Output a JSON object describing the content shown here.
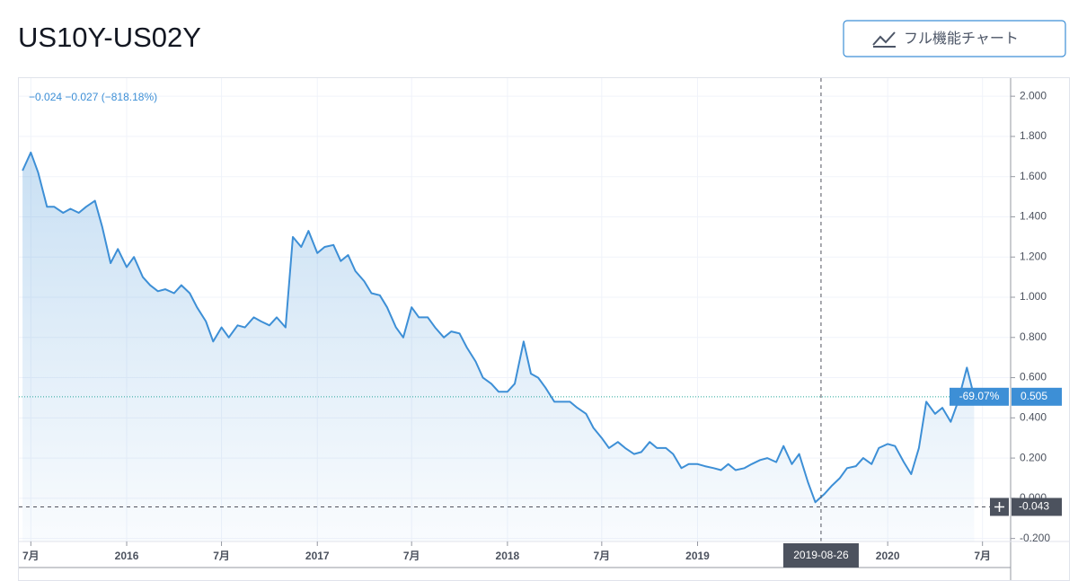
{
  "ui": {
    "button": "フル機能チャート"
  },
  "chart_data": {
    "type": "area",
    "title": "US10Y-US02Y",
    "legend_text": "−0.024  −0.027  (−818.18%)",
    "color": "#3d8fd6",
    "x": [
      "2015-06-15",
      "2015-07-01",
      "2015-07-15",
      "2015-08-01",
      "2015-08-15",
      "2015-09-01",
      "2015-09-15",
      "2015-10-01",
      "2015-10-15",
      "2015-11-01",
      "2015-11-15",
      "2015-12-01",
      "2015-12-15",
      "2016-01-01",
      "2016-01-15",
      "2016-02-01",
      "2016-02-15",
      "2016-03-01",
      "2016-03-15",
      "2016-04-01",
      "2016-04-15",
      "2016-05-01",
      "2016-05-15",
      "2016-06-01",
      "2016-06-15",
      "2016-07-01",
      "2016-07-15",
      "2016-08-01",
      "2016-08-15",
      "2016-09-01",
      "2016-09-15",
      "2016-10-01",
      "2016-10-15",
      "2016-11-01",
      "2016-11-15",
      "2016-12-01",
      "2016-12-15",
      "2017-01-01",
      "2017-01-15",
      "2017-02-01",
      "2017-02-15",
      "2017-03-01",
      "2017-03-15",
      "2017-04-01",
      "2017-04-15",
      "2017-05-01",
      "2017-05-15",
      "2017-06-01",
      "2017-06-15",
      "2017-07-01",
      "2017-07-15",
      "2017-08-01",
      "2017-08-15",
      "2017-09-01",
      "2017-09-15",
      "2017-10-01",
      "2017-10-15",
      "2017-11-01",
      "2017-11-15",
      "2017-12-01",
      "2017-12-15",
      "2018-01-01",
      "2018-01-15",
      "2018-02-01",
      "2018-02-15",
      "2018-03-01",
      "2018-03-15",
      "2018-04-01",
      "2018-04-15",
      "2018-05-01",
      "2018-05-15",
      "2018-06-01",
      "2018-06-15",
      "2018-07-01",
      "2018-07-15",
      "2018-08-01",
      "2018-08-15",
      "2018-09-01",
      "2018-09-15",
      "2018-10-01",
      "2018-10-15",
      "2018-11-01",
      "2018-11-15",
      "2018-12-01",
      "2018-12-15",
      "2019-01-01",
      "2019-01-15",
      "2019-02-01",
      "2019-02-15",
      "2019-03-01",
      "2019-03-15",
      "2019-04-01",
      "2019-04-15",
      "2019-05-01",
      "2019-05-15",
      "2019-06-01",
      "2019-06-15",
      "2019-07-01",
      "2019-07-15",
      "2019-08-01",
      "2019-08-15",
      "2019-09-01",
      "2019-09-15",
      "2019-10-01",
      "2019-10-15",
      "2019-11-01",
      "2019-11-15",
      "2019-12-01",
      "2019-12-15",
      "2020-01-01",
      "2020-01-15",
      "2020-02-01",
      "2020-02-15",
      "2020-03-01",
      "2020-03-15",
      "2020-04-01",
      "2020-04-15",
      "2020-05-01",
      "2020-05-15",
      "2020-06-01",
      "2020-06-15"
    ],
    "values": [
      1.63,
      1.72,
      1.62,
      1.45,
      1.45,
      1.42,
      1.44,
      1.42,
      1.45,
      1.48,
      1.35,
      1.17,
      1.24,
      1.15,
      1.2,
      1.1,
      1.06,
      1.03,
      1.04,
      1.02,
      1.06,
      1.02,
      0.95,
      0.88,
      0.78,
      0.85,
      0.8,
      0.86,
      0.85,
      0.9,
      0.88,
      0.86,
      0.9,
      0.85,
      1.3,
      1.25,
      1.33,
      1.22,
      1.25,
      1.26,
      1.18,
      1.21,
      1.13,
      1.08,
      1.02,
      1.01,
      0.95,
      0.85,
      0.8,
      0.95,
      0.9,
      0.9,
      0.85,
      0.8,
      0.83,
      0.82,
      0.75,
      0.68,
      0.6,
      0.57,
      0.53,
      0.53,
      0.57,
      0.78,
      0.62,
      0.6,
      0.55,
      0.48,
      0.48,
      0.48,
      0.45,
      0.42,
      0.35,
      0.3,
      0.25,
      0.28,
      0.25,
      0.22,
      0.23,
      0.28,
      0.25,
      0.25,
      0.22,
      0.15,
      0.17,
      0.17,
      0.16,
      0.15,
      0.14,
      0.17,
      0.14,
      0.15,
      0.17,
      0.19,
      0.2,
      0.18,
      0.26,
      0.17,
      0.22,
      0.08,
      -0.02,
      0.02,
      0.06,
      0.1,
      0.15,
      0.16,
      0.2,
      0.17,
      0.25,
      0.27,
      0.26,
      0.18,
      0.12,
      0.25,
      0.48,
      0.42,
      0.45,
      0.38,
      0.48,
      0.65,
      0.505
    ],
    "xlim": [
      "2015-06-08",
      "2020-08-24"
    ],
    "xticks": [
      {
        "value": "2015-07-01",
        "label": "7月"
      },
      {
        "value": "2016-01-01",
        "label": "2016"
      },
      {
        "value": "2016-07-01",
        "label": "7月"
      },
      {
        "value": "2017-01-01",
        "label": "2017"
      },
      {
        "value": "2017-07-01",
        "label": "7月"
      },
      {
        "value": "2018-01-01",
        "label": "2018"
      },
      {
        "value": "2018-07-01",
        "label": "7月"
      },
      {
        "value": "2019-01-01",
        "label": "2019"
      },
      {
        "value": "2020-01-01",
        "label": "2020"
      },
      {
        "value": "2020-07-01",
        "label": "7月"
      }
    ],
    "ylim": [
      -0.215,
      2.09
    ],
    "yticks": [
      {
        "value": 2,
        "label": "2.000"
      },
      {
        "value": 1.8,
        "label": "1.800"
      },
      {
        "value": 1.6,
        "label": "1.600"
      },
      {
        "value": 1.4,
        "label": "1.400"
      },
      {
        "value": 1.2,
        "label": "1.200"
      },
      {
        "value": 1,
        "label": "1.000"
      },
      {
        "value": 0.8,
        "label": "0.800"
      },
      {
        "value": 0.6,
        "label": "0.600"
      },
      {
        "value": 0.4,
        "label": "0.400"
      },
      {
        "value": 0.2,
        "label": "0.200"
      },
      {
        "value": 0,
        "label": "0.000"
      },
      {
        "value": -0.2,
        "label": "-0.200"
      }
    ],
    "grid": true,
    "last_value": 0.505,
    "last_change": {
      "value": -69.07,
      "label": "-69.07%"
    },
    "crosshair": {
      "x": "2019-08-26",
      "y": -0.043
    }
  }
}
